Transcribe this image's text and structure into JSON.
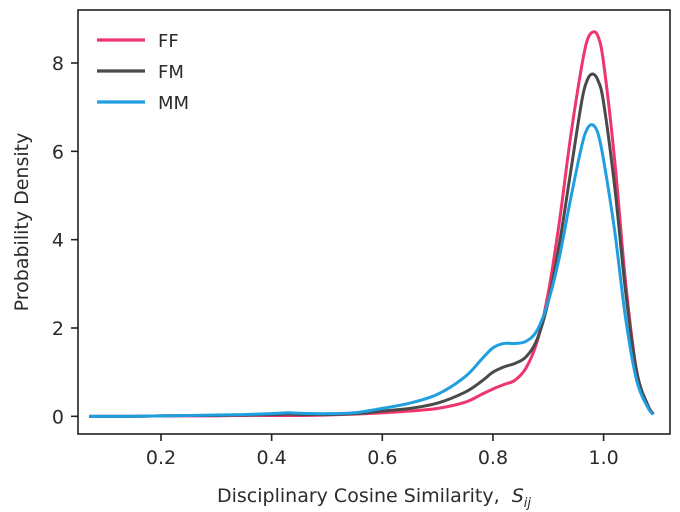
{
  "chart_data": {
    "type": "line",
    "title": "",
    "xlabel": "Disciplinary Cosine Similarity,",
    "xlabel_symbol": "S",
    "xlabel_subscript": "ij",
    "ylabel": "Probability Density",
    "xlim": [
      0.05,
      1.12
    ],
    "ylim": [
      -0.4,
      9.2
    ],
    "xticks": [
      0.2,
      0.4,
      0.6,
      0.8,
      1.0
    ],
    "xtick_labels": [
      "0.2",
      "0.4",
      "0.6",
      "0.8",
      "1.0"
    ],
    "yticks": [
      0,
      2,
      4,
      6,
      8
    ],
    "ytick_labels": [
      "0",
      "2",
      "4",
      "6",
      "8"
    ],
    "grid": false,
    "legend_position": "top-left",
    "x": [
      0.07,
      0.1,
      0.15,
      0.2,
      0.25,
      0.3,
      0.35,
      0.4,
      0.43,
      0.45,
      0.5,
      0.55,
      0.6,
      0.65,
      0.7,
      0.75,
      0.78,
      0.8,
      0.82,
      0.84,
      0.86,
      0.88,
      0.9,
      0.92,
      0.94,
      0.96,
      0.97,
      0.98,
      0.99,
      1.0,
      1.02,
      1.04,
      1.06,
      1.08,
      1.09
    ],
    "series": [
      {
        "name": "FF",
        "color": "#f0356c",
        "values": [
          0.0,
          0.0,
          0.0,
          0.01,
          0.01,
          0.01,
          0.02,
          0.02,
          0.02,
          0.02,
          0.03,
          0.05,
          0.08,
          0.12,
          0.18,
          0.32,
          0.5,
          0.62,
          0.72,
          0.82,
          1.1,
          1.7,
          2.8,
          4.4,
          6.3,
          7.9,
          8.5,
          8.7,
          8.6,
          8.0,
          5.8,
          3.0,
          1.0,
          0.25,
          0.05
        ]
      },
      {
        "name": "FM",
        "color": "#4a4a4a",
        "values": [
          0.0,
          0.0,
          0.0,
          0.01,
          0.02,
          0.02,
          0.03,
          0.04,
          0.05,
          0.04,
          0.04,
          0.06,
          0.12,
          0.18,
          0.3,
          0.55,
          0.8,
          1.0,
          1.12,
          1.2,
          1.35,
          1.75,
          2.6,
          3.9,
          5.5,
          7.1,
          7.6,
          7.75,
          7.6,
          7.1,
          5.2,
          2.8,
          1.0,
          0.25,
          0.05
        ]
      },
      {
        "name": "MM",
        "color": "#1f9ee0",
        "values": [
          0.0,
          0.0,
          0.0,
          0.01,
          0.02,
          0.03,
          0.04,
          0.06,
          0.08,
          0.07,
          0.06,
          0.08,
          0.18,
          0.3,
          0.5,
          0.9,
          1.3,
          1.55,
          1.65,
          1.65,
          1.7,
          1.95,
          2.6,
          3.6,
          4.9,
          6.1,
          6.5,
          6.6,
          6.4,
          5.8,
          4.2,
          2.2,
          0.8,
          0.2,
          0.04
        ]
      }
    ]
  }
}
